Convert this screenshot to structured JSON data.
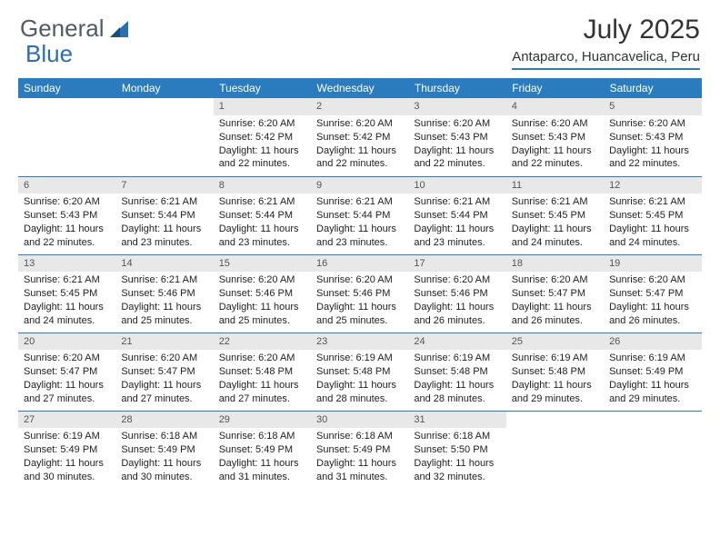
{
  "brand": {
    "part1": "General",
    "part2": "Blue"
  },
  "title": "July 2025",
  "location": "Antaparco, Huancavelica, Peru",
  "colors": {
    "header_bg": "#2b7bbf",
    "header_text": "#ffffff",
    "daynum_bg": "#e8e8e8",
    "brand_gray": "#555a60",
    "brand_blue": "#2b6fb0"
  },
  "weekdays": [
    "Sunday",
    "Monday",
    "Tuesday",
    "Wednesday",
    "Thursday",
    "Friday",
    "Saturday"
  ],
  "layout": {
    "first_weekday_index": 2,
    "days_in_month": 31
  },
  "days": {
    "1": {
      "sunrise": "6:20 AM",
      "sunset": "5:42 PM",
      "daylight": "11 hours and 22 minutes."
    },
    "2": {
      "sunrise": "6:20 AM",
      "sunset": "5:42 PM",
      "daylight": "11 hours and 22 minutes."
    },
    "3": {
      "sunrise": "6:20 AM",
      "sunset": "5:43 PM",
      "daylight": "11 hours and 22 minutes."
    },
    "4": {
      "sunrise": "6:20 AM",
      "sunset": "5:43 PM",
      "daylight": "11 hours and 22 minutes."
    },
    "5": {
      "sunrise": "6:20 AM",
      "sunset": "5:43 PM",
      "daylight": "11 hours and 22 minutes."
    },
    "6": {
      "sunrise": "6:20 AM",
      "sunset": "5:43 PM",
      "daylight": "11 hours and 22 minutes."
    },
    "7": {
      "sunrise": "6:21 AM",
      "sunset": "5:44 PM",
      "daylight": "11 hours and 23 minutes."
    },
    "8": {
      "sunrise": "6:21 AM",
      "sunset": "5:44 PM",
      "daylight": "11 hours and 23 minutes."
    },
    "9": {
      "sunrise": "6:21 AM",
      "sunset": "5:44 PM",
      "daylight": "11 hours and 23 minutes."
    },
    "10": {
      "sunrise": "6:21 AM",
      "sunset": "5:44 PM",
      "daylight": "11 hours and 23 minutes."
    },
    "11": {
      "sunrise": "6:21 AM",
      "sunset": "5:45 PM",
      "daylight": "11 hours and 24 minutes."
    },
    "12": {
      "sunrise": "6:21 AM",
      "sunset": "5:45 PM",
      "daylight": "11 hours and 24 minutes."
    },
    "13": {
      "sunrise": "6:21 AM",
      "sunset": "5:45 PM",
      "daylight": "11 hours and 24 minutes."
    },
    "14": {
      "sunrise": "6:21 AM",
      "sunset": "5:46 PM",
      "daylight": "11 hours and 25 minutes."
    },
    "15": {
      "sunrise": "6:20 AM",
      "sunset": "5:46 PM",
      "daylight": "11 hours and 25 minutes."
    },
    "16": {
      "sunrise": "6:20 AM",
      "sunset": "5:46 PM",
      "daylight": "11 hours and 25 minutes."
    },
    "17": {
      "sunrise": "6:20 AM",
      "sunset": "5:46 PM",
      "daylight": "11 hours and 26 minutes."
    },
    "18": {
      "sunrise": "6:20 AM",
      "sunset": "5:47 PM",
      "daylight": "11 hours and 26 minutes."
    },
    "19": {
      "sunrise": "6:20 AM",
      "sunset": "5:47 PM",
      "daylight": "11 hours and 26 minutes."
    },
    "20": {
      "sunrise": "6:20 AM",
      "sunset": "5:47 PM",
      "daylight": "11 hours and 27 minutes."
    },
    "21": {
      "sunrise": "6:20 AM",
      "sunset": "5:47 PM",
      "daylight": "11 hours and 27 minutes."
    },
    "22": {
      "sunrise": "6:20 AM",
      "sunset": "5:48 PM",
      "daylight": "11 hours and 27 minutes."
    },
    "23": {
      "sunrise": "6:19 AM",
      "sunset": "5:48 PM",
      "daylight": "11 hours and 28 minutes."
    },
    "24": {
      "sunrise": "6:19 AM",
      "sunset": "5:48 PM",
      "daylight": "11 hours and 28 minutes."
    },
    "25": {
      "sunrise": "6:19 AM",
      "sunset": "5:48 PM",
      "daylight": "11 hours and 29 minutes."
    },
    "26": {
      "sunrise": "6:19 AM",
      "sunset": "5:49 PM",
      "daylight": "11 hours and 29 minutes."
    },
    "27": {
      "sunrise": "6:19 AM",
      "sunset": "5:49 PM",
      "daylight": "11 hours and 30 minutes."
    },
    "28": {
      "sunrise": "6:18 AM",
      "sunset": "5:49 PM",
      "daylight": "11 hours and 30 minutes."
    },
    "29": {
      "sunrise": "6:18 AM",
      "sunset": "5:49 PM",
      "daylight": "11 hours and 31 minutes."
    },
    "30": {
      "sunrise": "6:18 AM",
      "sunset": "5:49 PM",
      "daylight": "11 hours and 31 minutes."
    },
    "31": {
      "sunrise": "6:18 AM",
      "sunset": "5:50 PM",
      "daylight": "11 hours and 32 minutes."
    }
  },
  "labels": {
    "sunrise": "Sunrise: ",
    "sunset": "Sunset: ",
    "daylight": "Daylight: "
  }
}
